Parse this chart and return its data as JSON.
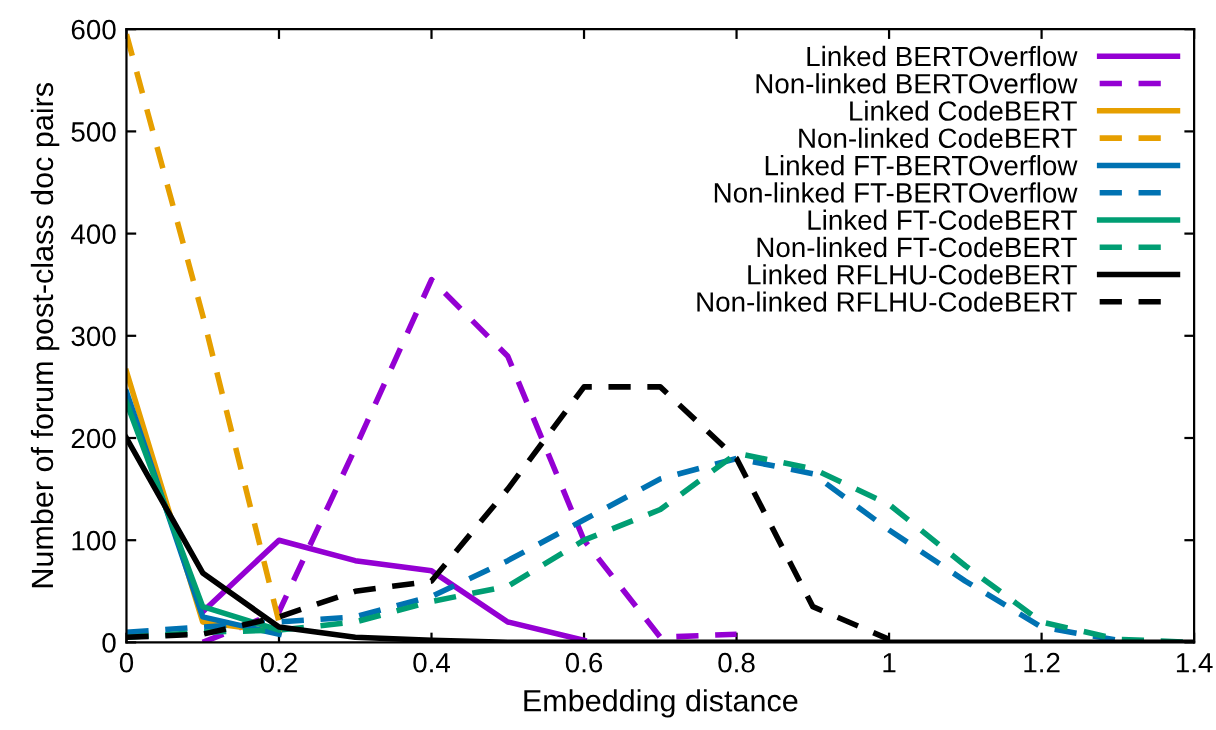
{
  "chart_data": {
    "type": "line",
    "xlabel": "Embedding distance",
    "ylabel": "Number of forum post-class doc pairs",
    "x": [
      0,
      0.1,
      0.2,
      0.3,
      0.4,
      0.5,
      0.6,
      0.7,
      0.8,
      0.9,
      1.0,
      1.1,
      1.2,
      1.3,
      1.4
    ],
    "xlim": [
      0,
      1.4
    ],
    "xticks": [
      0,
      0.2,
      0.4,
      0.6,
      0.8,
      1,
      1.2,
      1.4
    ],
    "ylim": [
      0,
      600
    ],
    "yticks": [
      0,
      100,
      200,
      300,
      400,
      500,
      600
    ],
    "grid": false,
    "legend": "top right",
    "marker": "none",
    "series": [
      {
        "name": "Linked BERTOverflow",
        "color": "#9400d3",
        "line_style": "solid",
        "values": [
          null,
          30,
          100,
          80,
          70,
          20,
          2,
          null,
          null,
          null,
          null,
          null,
          null,
          null,
          null
        ]
      },
      {
        "name": "Non-linked BERTOverflow",
        "color": "#9400d3",
        "line_style": "dashed",
        "values": [
          null,
          0,
          30,
          190,
          355,
          280,
          100,
          5,
          8,
          null,
          null,
          null,
          null,
          null,
          null
        ]
      },
      {
        "name": "Linked CodeBERT",
        "color": "#e69f00",
        "line_style": "solid",
        "values": [
          265,
          20,
          10,
          null,
          null,
          null,
          null,
          null,
          null,
          null,
          null,
          null,
          null,
          null,
          null
        ]
      },
      {
        "name": "Non-linked CodeBERT",
        "color": "#e69f00",
        "line_style": "dashed",
        "values": [
          595,
          320,
          20,
          null,
          null,
          null,
          null,
          null,
          null,
          null,
          null,
          null,
          null,
          null,
          null
        ]
      },
      {
        "name": "Linked FT-BERTOverflow",
        "color": "#0072b2",
        "line_style": "solid",
        "values": [
          245,
          25,
          8,
          null,
          null,
          null,
          null,
          null,
          null,
          null,
          null,
          null,
          null,
          null,
          null
        ]
      },
      {
        "name": "Non-linked FT-BERTOverflow",
        "color": "#0072b2",
        "line_style": "dashed",
        "values": [
          10,
          15,
          20,
          25,
          45,
          80,
          120,
          160,
          180,
          165,
          110,
          60,
          15,
          2,
          null
        ]
      },
      {
        "name": "Linked FT-CodeBERT",
        "color": "#009e73",
        "line_style": "solid",
        "values": [
          235,
          35,
          12,
          null,
          null,
          null,
          null,
          null,
          null,
          null,
          null,
          null,
          null,
          null,
          null
        ]
      },
      {
        "name": "Non-linked FT-CodeBERT",
        "color": "#009e73",
        "line_style": "dashed",
        "values": [
          5,
          10,
          12,
          20,
          40,
          55,
          100,
          130,
          185,
          170,
          135,
          75,
          20,
          3,
          0
        ]
      },
      {
        "name": "Linked RFLHU-CodeBERT",
        "color": "#000000",
        "line_style": "solid",
        "values": [
          200,
          68,
          15,
          5,
          2,
          0,
          0,
          0,
          0,
          0,
          0,
          0,
          0,
          0,
          0
        ]
      },
      {
        "name": "Non-linked RFLHU-CodeBERT",
        "color": "#000000",
        "line_style": "dashed",
        "values": [
          5,
          8,
          25,
          50,
          60,
          150,
          250,
          250,
          180,
          35,
          3,
          null,
          null,
          null,
          null
        ]
      }
    ]
  }
}
